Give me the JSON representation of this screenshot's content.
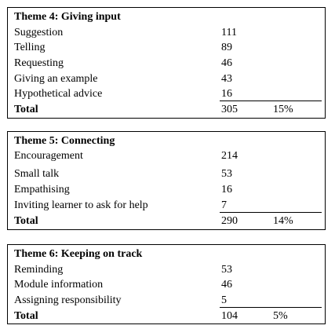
{
  "themes": [
    {
      "title": "Theme 4: Giving input",
      "rows": [
        {
          "label": "Suggestion",
          "value": "111"
        },
        {
          "label": "Telling",
          "value": "89"
        },
        {
          "label": "Requesting",
          "value": "46"
        },
        {
          "label": "Giving an example",
          "value": "43"
        },
        {
          "label": "Hypothetical advice",
          "value": "16"
        }
      ],
      "total": {
        "label": "Total",
        "value": "305",
        "percent": "15%"
      }
    },
    {
      "title": "Theme 5: Connecting",
      "rows": [
        {
          "label": "Encouragement",
          "value": "214"
        },
        {
          "label": "Small talk",
          "value": "53"
        },
        {
          "label": "Empathising",
          "value": "16"
        },
        {
          "label": "Inviting learner to ask for help",
          "value": "7"
        }
      ],
      "total": {
        "label": "Total",
        "value": "290",
        "percent": "14%"
      }
    },
    {
      "title": "Theme 6: Keeping on track",
      "rows": [
        {
          "label": "Reminding",
          "value": "53"
        },
        {
          "label": "Module information",
          "value": "46"
        },
        {
          "label": "Assigning responsibility",
          "value": "5"
        }
      ],
      "total": {
        "label": "Total",
        "value": "104",
        "percent": "5%"
      }
    }
  ]
}
